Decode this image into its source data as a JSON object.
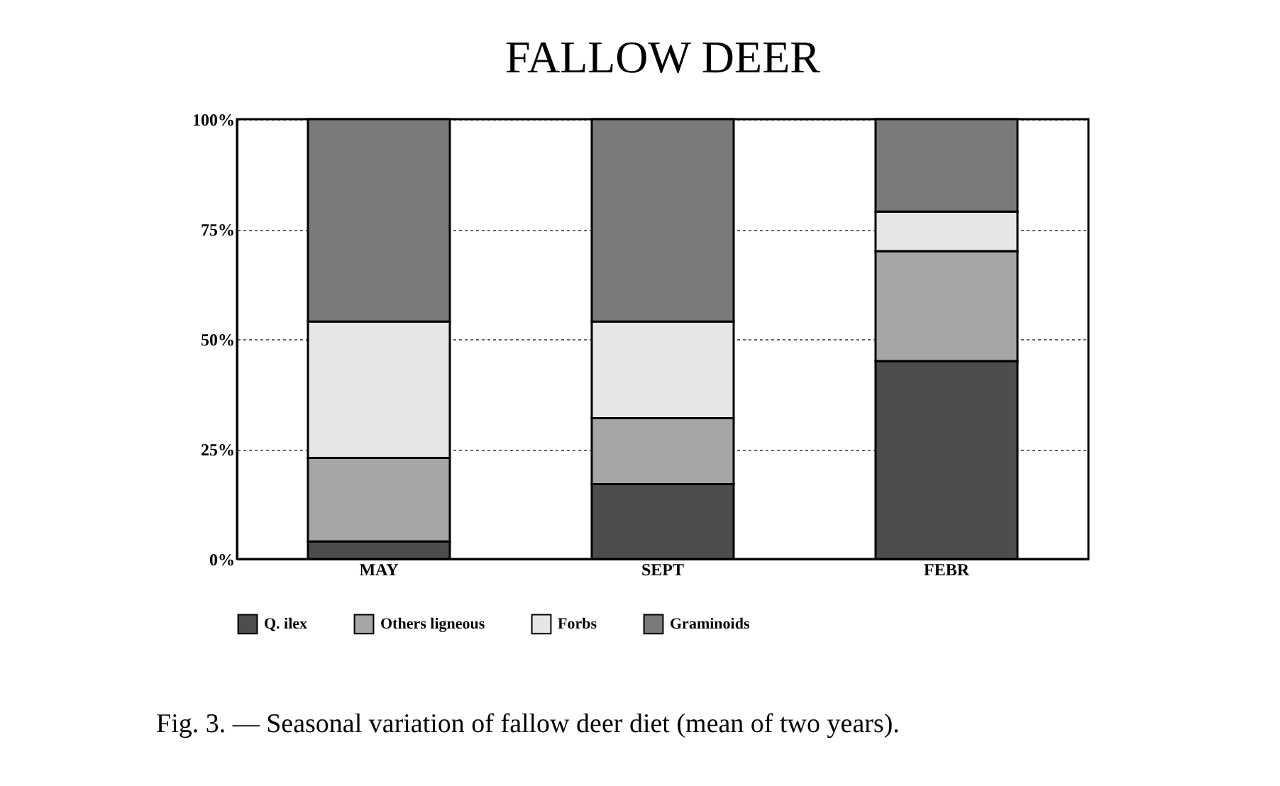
{
  "chart_data": {
    "type": "bar",
    "title": "FALLOW DEER",
    "categories": [
      "MAY",
      "SEPT",
      "FEBR"
    ],
    "stacked": true,
    "series": [
      {
        "name": "Q. ilex",
        "color": "#4d4d4d",
        "values": [
          4,
          17,
          45
        ]
      },
      {
        "name": "Others ligneous",
        "color": "#a6a6a6",
        "values": [
          19,
          15,
          25
        ]
      },
      {
        "name": "Forbs",
        "color": "#e6e6e6",
        "values": [
          31,
          22,
          9
        ]
      },
      {
        "name": "Graminoids",
        "color": "#7a7a7a",
        "values": [
          46,
          46,
          21
        ]
      }
    ],
    "ylim": [
      0,
      100
    ],
    "yticks": [
      {
        "value": 0,
        "label": "0%"
      },
      {
        "value": 25,
        "label": "25%"
      },
      {
        "value": 50,
        "label": "50%"
      },
      {
        "value": 75,
        "label": "75%"
      },
      {
        "value": 100,
        "label": "100%"
      }
    ],
    "grid": "y",
    "legend": "bottom",
    "annotations": [
      "Fig. 3. — Seasonal variation of fallow deer diet (mean of two years)."
    ]
  }
}
